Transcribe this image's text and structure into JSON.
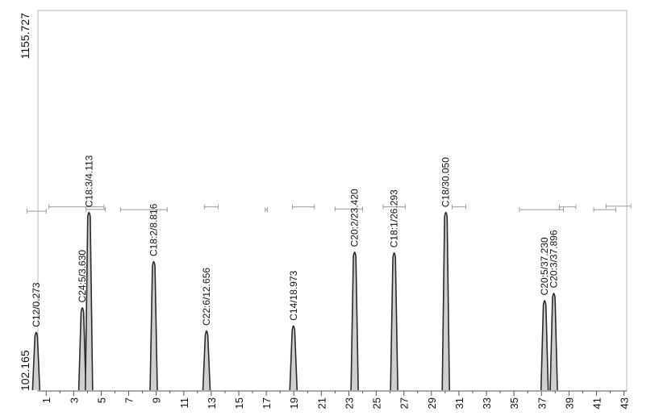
{
  "chart_data": {
    "type": "line",
    "title": "",
    "xlabel": "",
    "ylabel": "",
    "xlim": [
      0.4,
      43.2
    ],
    "ylim": [
      102.165,
      1155.727
    ],
    "y_axis_labels": [
      "1155.727",
      "102.165"
    ],
    "x_ticks": [
      "1",
      "3",
      "5",
      "7",
      "9",
      "11",
      "13",
      "15",
      "17",
      "19",
      "21",
      "23",
      "25",
      "27",
      "29",
      "31",
      "33",
      "35",
      "37",
      "39",
      "41",
      "43"
    ],
    "peaks": [
      {
        "rt": 0.273,
        "height": 270,
        "label": "C12/0.273"
      },
      {
        "rt": 3.63,
        "height": 338,
        "label": "C24:5/3.630"
      },
      {
        "rt": 4.113,
        "height": 602,
        "label": "C18:3/4.113"
      },
      {
        "rt": 8.816,
        "height": 466,
        "label": "C18:2/8.816"
      },
      {
        "rt": 12.656,
        "height": 274,
        "label": "C22:6/12.656"
      },
      {
        "rt": 18.973,
        "height": 288,
        "label": "C14/18.973"
      },
      {
        "rt": 23.42,
        "height": 492,
        "label": "C20:2/23.420"
      },
      {
        "rt": 26.293,
        "height": 490,
        "label": "C18:1/26.293"
      },
      {
        "rt": 30.05,
        "height": 602,
        "label": "C18/30.050"
      },
      {
        "rt": 37.23,
        "height": 358,
        "label": "C20:5/37.230"
      },
      {
        "rt": 37.896,
        "height": 378,
        "label": "C20:3/37.896"
      }
    ],
    "error_bars": [
      {
        "center": 0.3,
        "half": 0.7,
        "y": 600
      },
      {
        "center": 3.2,
        "half": 2.0,
        "y": 612
      },
      {
        "center": 4.6,
        "half": 0.7,
        "y": 605
      },
      {
        "center": 8.1,
        "half": 1.7,
        "y": 604
      },
      {
        "center": 13.0,
        "half": 0.5,
        "y": 612
      },
      {
        "center": 17.0,
        "half": 0.08,
        "y": 604
      },
      {
        "center": 19.7,
        "half": 0.8,
        "y": 612
      },
      {
        "center": 23.0,
        "half": 1.0,
        "y": 606
      },
      {
        "center": 26.3,
        "half": 0.8,
        "y": 612
      },
      {
        "center": 31.0,
        "half": 0.5,
        "y": 612
      },
      {
        "center": 37.0,
        "half": 1.6,
        "y": 604
      },
      {
        "center": 38.9,
        "half": 0.6,
        "y": 612
      },
      {
        "center": 41.6,
        "half": 0.8,
        "y": 604
      },
      {
        "center": 42.6,
        "half": 0.9,
        "y": 614
      }
    ]
  }
}
